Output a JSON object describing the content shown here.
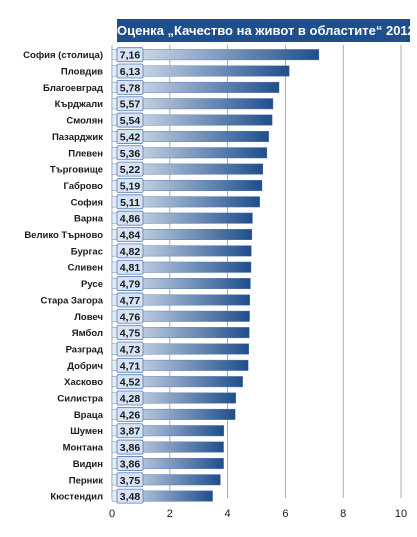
{
  "chart_data": {
    "type": "bar",
    "orientation": "horizontal",
    "title": "Оценка „Качество на живот в областите“ 2012",
    "categories": [
      "София (столица)",
      "Пловдив",
      "Благоевград",
      "Кърджали",
      "Смолян",
      "Пазарджик",
      "Плевен",
      "Търговище",
      "Габрово",
      "София",
      "Варна",
      "Велико Търново",
      "Бургас",
      "Сливен",
      "Русе",
      "Стара Загора",
      "Ловеч",
      "Ямбол",
      "Разград",
      "Добрич",
      "Хасково",
      "Силистра",
      "Враца",
      "Шумен",
      "Монтана",
      "Видин",
      "Перник",
      "Кюстендил"
    ],
    "values": [
      7.16,
      6.13,
      5.78,
      5.57,
      5.54,
      5.42,
      5.36,
      5.22,
      5.19,
      5.11,
      4.86,
      4.84,
      4.82,
      4.81,
      4.79,
      4.77,
      4.76,
      4.75,
      4.73,
      4.71,
      4.52,
      4.28,
      4.26,
      3.87,
      3.86,
      3.86,
      3.75,
      3.48
    ],
    "value_labels": [
      "7,16",
      "6,13",
      "5,78",
      "5,57",
      "5,54",
      "5,42",
      "5,36",
      "5,22",
      "5,19",
      "5,11",
      "4,86",
      "4,84",
      "4,82",
      "4,81",
      "4,79",
      "4,77",
      "4,76",
      "4,75",
      "4,73",
      "4,71",
      "4,52",
      "4,28",
      "4,26",
      "3,87",
      "3,86",
      "3,86",
      "3,75",
      "3,48"
    ],
    "xlim": [
      0,
      10
    ],
    "xticks": [
      "0",
      "2",
      "4",
      "6",
      "8",
      "10"
    ],
    "grid": "vertical",
    "legend": "none",
    "xlabel": "",
    "ylabel": "",
    "colors": {
      "title_bg": "#1f4e8c",
      "title_text": "#ffffff",
      "bar_dark": "#1f4e8c",
      "bar_light": "#e8eef7",
      "label_box_fill": "#d6e3f5",
      "label_box_stroke": "#5b7fb7",
      "grid": "#9a9a9a"
    }
  }
}
